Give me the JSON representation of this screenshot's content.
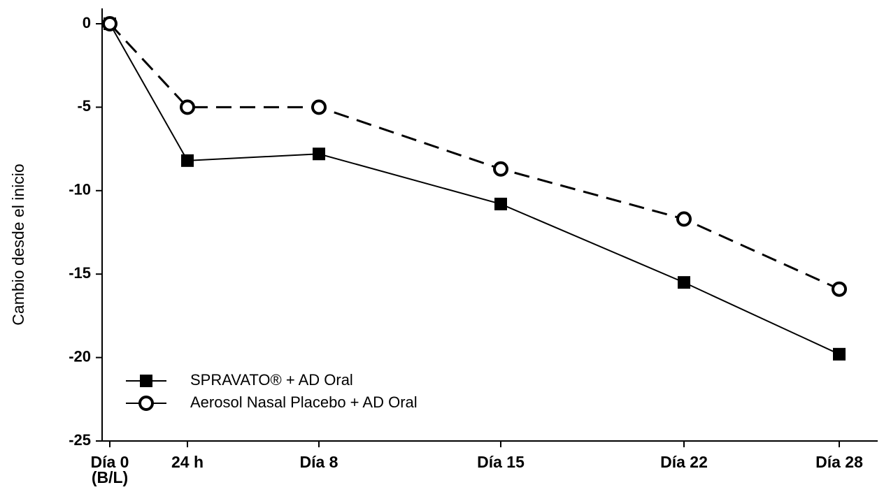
{
  "chart_data": {
    "type": "line",
    "ylabel": "Cambio desde el inicio",
    "categories": [
      "Día 0\n(B/L)",
      "24 h",
      "Día 8",
      "Día 15",
      "Día 22",
      "Día 28"
    ],
    "series": [
      {
        "name": "SPRAVATO® + AD Oral",
        "color": "#000000",
        "line_style": "solid",
        "marker": "square",
        "values": [
          0,
          -8.2,
          -7.8,
          -10.8,
          -15.5,
          -19.8
        ]
      },
      {
        "name": "Aerosol Nasal Placebo + AD Oral",
        "color": "#000000",
        "line_style": "dashed",
        "marker": "circle-open",
        "values": [
          0,
          -5.0,
          -5.0,
          -8.7,
          -11.7,
          -15.9
        ]
      }
    ],
    "ylim": [
      -25,
      0
    ],
    "yticks": [
      0,
      -5,
      -10,
      -15,
      -20,
      -25
    ],
    "grid": false,
    "legend": "lower-left"
  }
}
